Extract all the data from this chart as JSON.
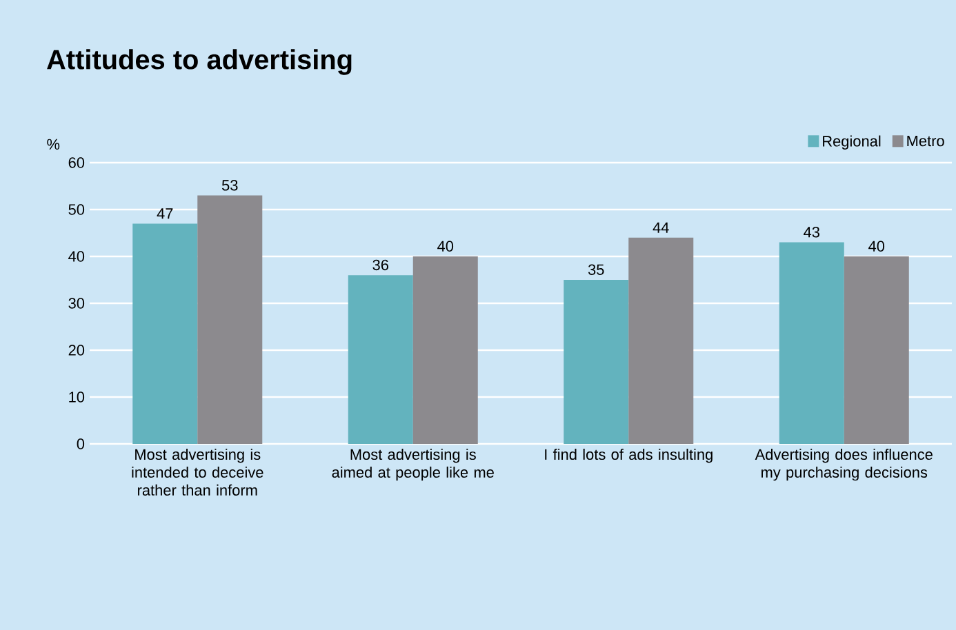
{
  "chart_data": {
    "type": "bar",
    "title": "Attitudes to advertising",
    "ylabel": "%",
    "categories": [
      "Most advertising is intended to deceive rather than inform",
      "Most advertising is aimed at people like me",
      "I find lots of ads insulting",
      "Advertising does influence my purchasing decisions"
    ],
    "series": [
      {
        "name": "Regional",
        "color": "#63b3be",
        "values": [
          47,
          36,
          35,
          43
        ]
      },
      {
        "name": "Metro",
        "color": "#8c8a8e",
        "values": [
          53,
          40,
          44,
          40
        ]
      }
    ],
    "ylim": [
      0,
      60
    ],
    "yticks": [
      0,
      10,
      20,
      30,
      40,
      50,
      60
    ],
    "grid": "y",
    "legend": "top right",
    "data_labels": true
  }
}
